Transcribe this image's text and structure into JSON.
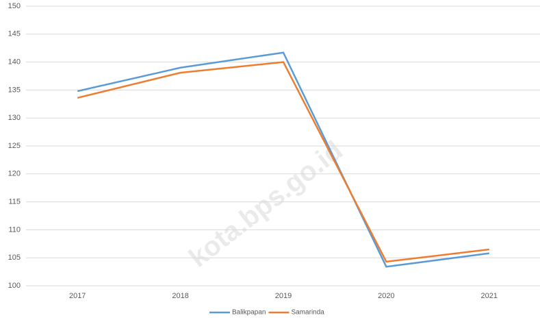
{
  "chart_data": {
    "type": "line",
    "categories": [
      "2017",
      "2018",
      "2019",
      "2020",
      "2021"
    ],
    "series": [
      {
        "name": "Balikpapan",
        "color": "#5b9bd5",
        "values": [
          134.8,
          139.0,
          141.7,
          103.4,
          105.8
        ]
      },
      {
        "name": "Samarinda",
        "color": "#ed7d31",
        "values": [
          133.6,
          138.1,
          140.0,
          104.3,
          106.5
        ]
      }
    ],
    "ylim": [
      100,
      150
    ],
    "yticks": [
      100,
      105,
      110,
      115,
      120,
      125,
      130,
      135,
      140,
      145,
      150
    ],
    "grid": true,
    "legend": "bottom",
    "watermark": "kota.bps.go.id"
  }
}
